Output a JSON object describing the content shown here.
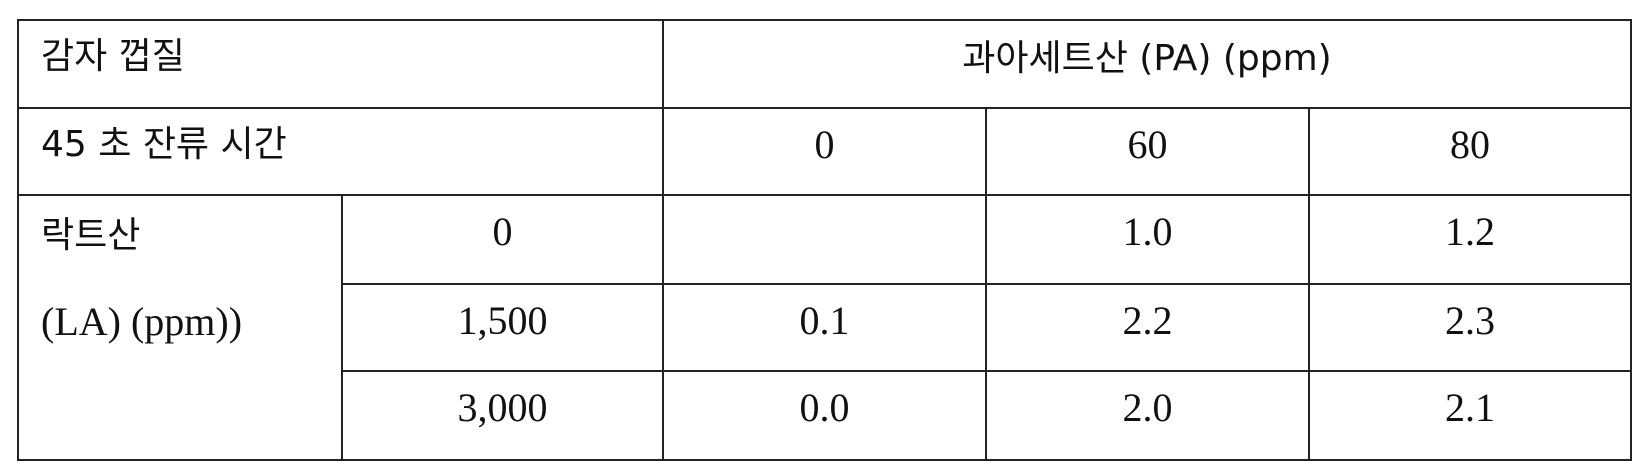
{
  "table": {
    "corner_label": "감자 껍질",
    "pa_header": "과아세트산 (PA) (ppm)",
    "time_label": "45 초 잔류 시간",
    "pa_levels": [
      "0",
      "60",
      "80"
    ],
    "la_label_line1": "락트산",
    "la_label_line2": "(LA) (ppm))",
    "rows": [
      {
        "la": "0",
        "values": [
          "",
          "1.0",
          "1.2"
        ]
      },
      {
        "la": "1,500",
        "values": [
          "0.1",
          "2.2",
          "2.3"
        ]
      },
      {
        "la": "3,000",
        "values": [
          "0.0",
          "2.0",
          "2.1"
        ]
      }
    ]
  }
}
